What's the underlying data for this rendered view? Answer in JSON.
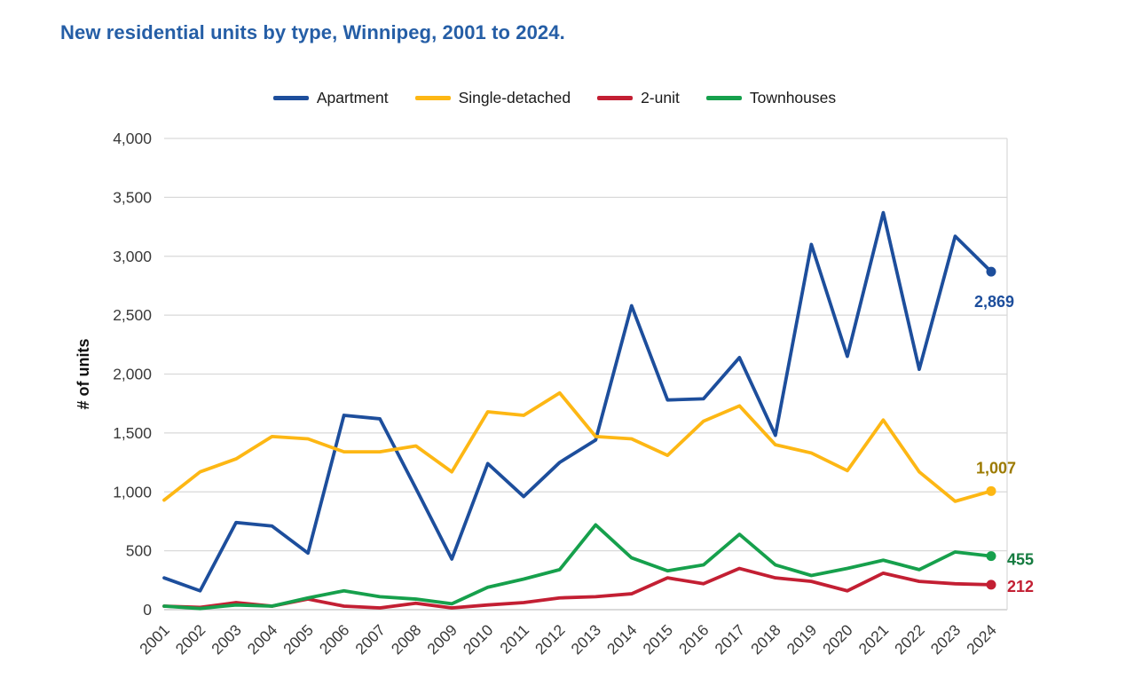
{
  "title": "New residential units by type, Winnipeg, 2001 to 2024.",
  "colors": {
    "title": "#255ea6",
    "gridline": "#d9d9d9",
    "axis_text": "#3a3a3a"
  },
  "chart_data": {
    "type": "line",
    "title": "New residential units by type, Winnipeg, 2001 to 2024.",
    "xlabel": "",
    "ylabel": "# of units",
    "ylim": [
      0,
      4000
    ],
    "ytick_step": 500,
    "grid": true,
    "legend_position": "top",
    "x": [
      2001,
      2002,
      2003,
      2004,
      2005,
      2006,
      2007,
      2008,
      2009,
      2010,
      2011,
      2012,
      2013,
      2014,
      2015,
      2016,
      2017,
      2018,
      2019,
      2020,
      2021,
      2022,
      2023,
      2024
    ],
    "series": [
      {
        "name": "Apartment",
        "color": "#1d4e9c",
        "label_color": "#1d4e9c",
        "values": [
          270,
          160,
          740,
          710,
          480,
          1650,
          1620,
          1030,
          430,
          1240,
          960,
          1250,
          1440,
          2580,
          1780,
          1790,
          2140,
          1480,
          3100,
          2150,
          3370,
          2040,
          3170,
          2869
        ],
        "end_label": "2,869",
        "end_label_anchor": "end",
        "end_label_offset": [
          26,
          40
        ]
      },
      {
        "name": "Single-detached",
        "color": "#fdb714",
        "label_color": "#9c7a00",
        "values": [
          930,
          1170,
          1280,
          1470,
          1450,
          1340,
          1340,
          1390,
          1170,
          1680,
          1650,
          1840,
          1470,
          1450,
          1310,
          1600,
          1730,
          1400,
          1330,
          1180,
          1610,
          1170,
          920,
          1007
        ],
        "end_label": "1,007",
        "end_label_anchor": "end",
        "end_label_offset": [
          28,
          -20
        ]
      },
      {
        "name": "2-unit",
        "color": "#c31f33",
        "label_color": "#c31f33",
        "values": [
          30,
          20,
          60,
          30,
          90,
          30,
          15,
          55,
          15,
          40,
          60,
          100,
          110,
          135,
          270,
          220,
          350,
          270,
          240,
          160,
          310,
          240,
          220,
          212
        ],
        "end_label": "212",
        "end_label_anchor": "start",
        "end_label_offset": [
          18,
          8
        ]
      },
      {
        "name": "Townhouses",
        "color": "#16a04c",
        "label_color": "#157b40",
        "values": [
          30,
          10,
          40,
          30,
          100,
          160,
          110,
          90,
          50,
          190,
          260,
          340,
          720,
          440,
          330,
          380,
          640,
          380,
          290,
          350,
          420,
          340,
          490,
          455
        ],
        "end_label": "455",
        "end_label_anchor": "start",
        "end_label_offset": [
          18,
          10
        ]
      }
    ]
  }
}
